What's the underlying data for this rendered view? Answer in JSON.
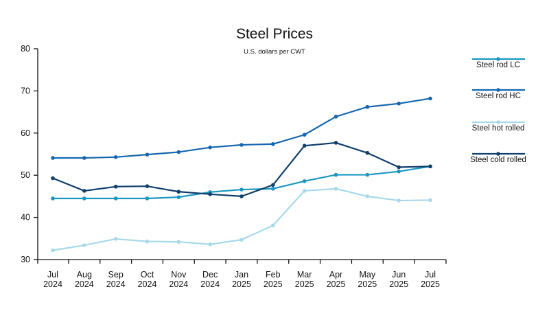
{
  "chart_data": {
    "type": "line",
    "title": "Steel Prices",
    "subtitle": "U.S. dollars per CWT",
    "xlabel": "",
    "ylabel": "",
    "ylim": [
      30,
      80
    ],
    "yticks": [
      30,
      40,
      50,
      60,
      70,
      80
    ],
    "grid": false,
    "legend_position": "right",
    "categories": [
      {
        "month": "Jul",
        "year": "2024"
      },
      {
        "month": "Aug",
        "year": "2024"
      },
      {
        "month": "Sep",
        "year": "2024"
      },
      {
        "month": "Oct",
        "year": "2024"
      },
      {
        "month": "Nov",
        "year": "2024"
      },
      {
        "month": "Dec",
        "year": "2024"
      },
      {
        "month": "Jan",
        "year": "2025"
      },
      {
        "month": "Feb",
        "year": "2025"
      },
      {
        "month": "Mar",
        "year": "2025"
      },
      {
        "month": "Apr",
        "year": "2025"
      },
      {
        "month": "May",
        "year": "2025"
      },
      {
        "month": "Jun",
        "year": "2025"
      },
      {
        "month": "Jul",
        "year": "2025"
      }
    ],
    "series": [
      {
        "name": "Steel rod LC",
        "color": "#1c97c1",
        "values": [
          44.5,
          44.5,
          44.5,
          44.5,
          44.8,
          46.0,
          46.6,
          46.8,
          48.6,
          50.1,
          50.1,
          50.9,
          52.1
        ]
      },
      {
        "name": "Steel rod HC",
        "color": "#1567b0",
        "values": [
          54.1,
          54.1,
          54.3,
          54.9,
          55.5,
          56.6,
          57.2,
          57.4,
          59.6,
          63.9,
          66.2,
          67.0,
          68.2
        ]
      },
      {
        "name": "Steel hot rolled",
        "color": "#a7d9ea",
        "values": [
          32.2,
          33.4,
          34.9,
          34.3,
          34.2,
          33.6,
          34.7,
          38.1,
          46.3,
          46.8,
          45.0,
          44.0,
          44.1
        ]
      },
      {
        "name": "Steel cold rolled",
        "color": "#103f6b",
        "values": [
          49.3,
          46.3,
          47.3,
          47.4,
          46.1,
          45.5,
          45.0,
          47.7,
          57.0,
          57.7,
          55.3,
          51.9,
          52.1
        ]
      }
    ]
  }
}
